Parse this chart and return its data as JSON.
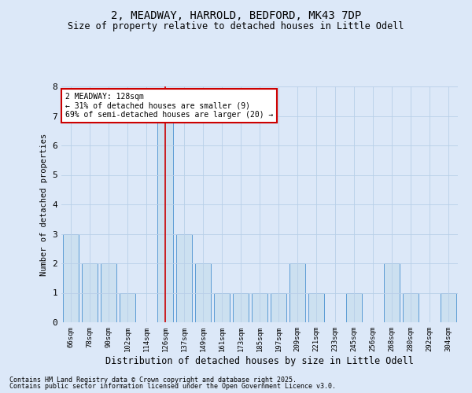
{
  "title1": "2, MEADWAY, HARROLD, BEDFORD, MK43 7DP",
  "title2": "Size of property relative to detached houses in Little Odell",
  "xlabel": "Distribution of detached houses by size in Little Odell",
  "ylabel": "Number of detached properties",
  "categories": [
    "66sqm",
    "78sqm",
    "90sqm",
    "102sqm",
    "114sqm",
    "126sqm",
    "137sqm",
    "149sqm",
    "161sqm",
    "173sqm",
    "185sqm",
    "197sqm",
    "209sqm",
    "221sqm",
    "233sqm",
    "245sqm",
    "256sqm",
    "268sqm",
    "280sqm",
    "292sqm",
    "304sqm"
  ],
  "values": [
    3,
    2,
    2,
    1,
    0,
    7,
    3,
    2,
    1,
    1,
    1,
    1,
    2,
    1,
    0,
    1,
    0,
    2,
    1,
    0,
    1
  ],
  "highlight_index": 5,
  "annotation_line1": "2 MEADWAY: 128sqm",
  "annotation_line2": "← 31% of detached houses are smaller (9)",
  "annotation_line3": "69% of semi-detached houses are larger (20) →",
  "bar_color": "#cce0f0",
  "bar_edge_color": "#5b9bd5",
  "highlight_line_color": "#cc0000",
  "annotation_box_edge": "#cc0000",
  "background_color": "#dce8f8",
  "plot_bg_color": "#dce8f8",
  "grid_color": "#b8cfe8",
  "ylim": [
    0,
    8
  ],
  "yticks": [
    0,
    1,
    2,
    3,
    4,
    5,
    6,
    7,
    8
  ],
  "footer1": "Contains HM Land Registry data © Crown copyright and database right 2025.",
  "footer2": "Contains public sector information licensed under the Open Government Licence v3.0."
}
